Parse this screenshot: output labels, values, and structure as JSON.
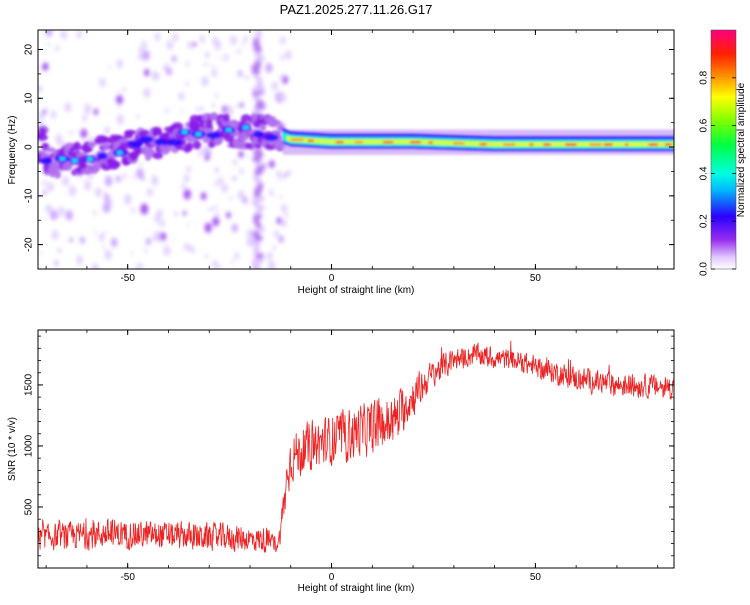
{
  "title": "PAZ1.2025.277.11.26.G17",
  "chart_data": [
    {
      "type": "heatmap",
      "xlabel": "Height of straight line (km)",
      "ylabel": "Frequency (Hz)",
      "xlim": [
        -72,
        84
      ],
      "ylim": [
        -25,
        24
      ],
      "xticks": [
        -50,
        0,
        50
      ],
      "yticks": [
        -20,
        -10,
        0,
        10,
        20
      ],
      "xtick_labels": [
        "-50",
        "0",
        "50"
      ],
      "ytick_labels": [
        "-20",
        "-10",
        "0",
        "10",
        "20"
      ],
      "colorbar": {
        "label": "Normalized spectral amplitude",
        "range": [
          0,
          1
        ],
        "ticks": [
          0,
          0.2,
          0.4,
          0.6,
          0.8
        ],
        "tick_labels": [
          "0.0",
          "0.2",
          "0.4",
          "0.6",
          "0.8"
        ]
      },
      "ridge": [
        {
          "x": -70,
          "f": -3.0
        },
        {
          "x": -60,
          "f": -2.0
        },
        {
          "x": -50,
          "f": 0.0
        },
        {
          "x": -40,
          "f": 1.5
        },
        {
          "x": -30,
          "f": 3.5
        },
        {
          "x": -22,
          "f": 3.0
        },
        {
          "x": -15,
          "f": 3.0
        },
        {
          "x": -10,
          "f": 1.5
        },
        {
          "x": 0,
          "f": 1.0
        },
        {
          "x": 20,
          "f": 1.0
        },
        {
          "x": 40,
          "f": 0.5
        },
        {
          "x": 60,
          "f": 0.5
        },
        {
          "x": 84,
          "f": 0.5
        }
      ],
      "vertical_artifact_x": -18
    },
    {
      "type": "line",
      "xlabel": "Height of straight line (km)",
      "ylabel": "SNR (10 * v/v)",
      "xlim": [
        -72,
        84
      ],
      "ylim": [
        0,
        1950
      ],
      "xticks": [
        -50,
        0,
        50
      ],
      "yticks": [
        500,
        1000,
        1500
      ],
      "xtick_labels": [
        "-50",
        "0",
        "50"
      ],
      "ytick_labels": [
        "500",
        "1000",
        "1500"
      ],
      "series": [
        {
          "name": "SNR",
          "color": "#ee2222",
          "envelope_x": [
            -72,
            -65,
            -55,
            -45,
            -35,
            -25,
            -17,
            -13,
            -11,
            -10,
            -5,
            0,
            5,
            10,
            15,
            20,
            25,
            30,
            35,
            40,
            45,
            50,
            60,
            70,
            84
          ],
          "envelope_mean": [
            250,
            260,
            280,
            270,
            260,
            250,
            230,
            200,
            700,
            900,
            1000,
            1050,
            1100,
            1150,
            1200,
            1400,
            1600,
            1700,
            1750,
            1720,
            1700,
            1650,
            1550,
            1500,
            1480
          ],
          "envelope_spread": [
            130,
            140,
            150,
            140,
            140,
            140,
            130,
            90,
            250,
            250,
            250,
            260,
            270,
            270,
            260,
            200,
            140,
            120,
            110,
            110,
            110,
            110,
            120,
            120,
            120
          ]
        }
      ]
    }
  ]
}
